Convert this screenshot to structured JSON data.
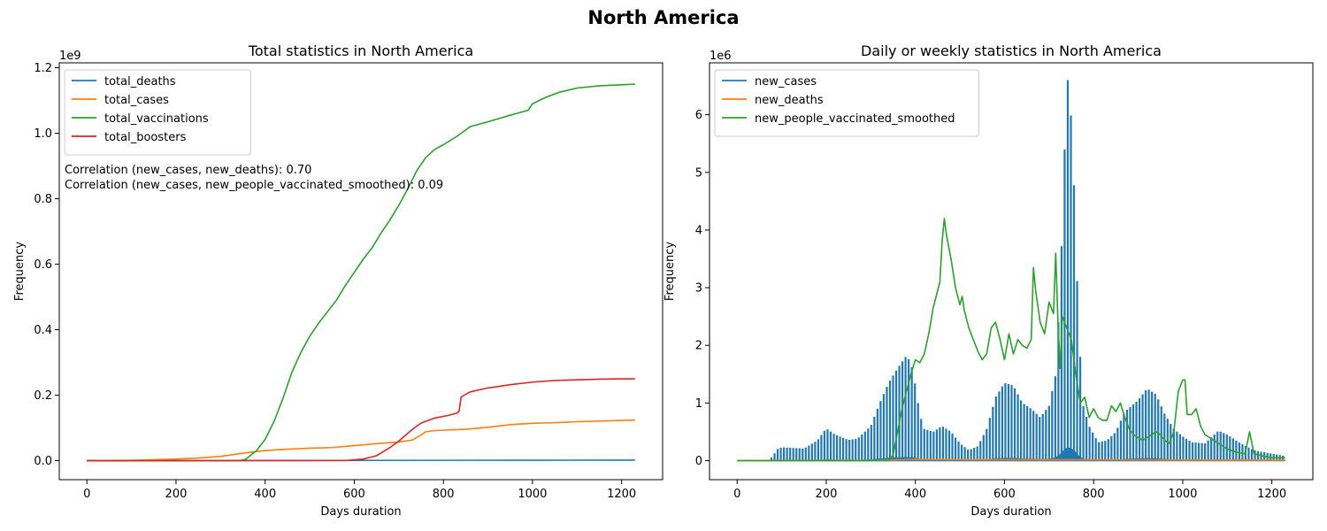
{
  "figure": {
    "title": "North America"
  },
  "colors": {
    "blue": "#1f77b4",
    "orange": "#ff7f0e",
    "green": "#2ca02c",
    "red": "#d62728"
  },
  "chart_data": [
    {
      "type": "line",
      "title": "Total statistics in North America",
      "xlabel": "Days duration",
      "ylabel": "Frequency",
      "offset_text": "1e9",
      "xlim": [
        -62,
        1292
      ],
      "ylim": [
        -0.058,
        1.215
      ],
      "xticks": [
        0,
        200,
        400,
        600,
        800,
        1000,
        1200
      ],
      "yticks": [
        0.0,
        0.2,
        0.4,
        0.6,
        0.8,
        1.0,
        1.2
      ],
      "ytick_labels": [
        "0.0",
        "0.2",
        "0.4",
        "0.6",
        "0.8",
        "1.0",
        "1.2"
      ],
      "legend_position": "upper left",
      "annotations": [
        "Correlation (new_cases, new_deaths): 0.70",
        "Correlation (new_cases, new_people_vaccinated_smoothed): 0.09"
      ],
      "series": [
        {
          "name": "total_deaths",
          "color": "#1f77b4",
          "points": [
            [
              0,
              0
            ],
            [
              300,
              0.0003
            ],
            [
              600,
              0.0008
            ],
            [
              800,
              0.0011
            ],
            [
              1000,
              0.0014
            ],
            [
              1230,
              0.0016
            ]
          ]
        },
        {
          "name": "total_cases",
          "color": "#ff7f0e",
          "points": [
            [
              0,
              0
            ],
            [
              100,
              0.001
            ],
            [
              200,
              0.005
            ],
            [
              250,
              0.008
            ],
            [
              300,
              0.013
            ],
            [
              350,
              0.023
            ],
            [
              400,
              0.031
            ],
            [
              450,
              0.035
            ],
            [
              500,
              0.038
            ],
            [
              550,
              0.04
            ],
            [
              600,
              0.046
            ],
            [
              650,
              0.052
            ],
            [
              700,
              0.057
            ],
            [
              730,
              0.063
            ],
            [
              750,
              0.078
            ],
            [
              760,
              0.088
            ],
            [
              780,
              0.092
            ],
            [
              800,
              0.093
            ],
            [
              850,
              0.096
            ],
            [
              900,
              0.102
            ],
            [
              950,
              0.11
            ],
            [
              1000,
              0.114
            ],
            [
              1050,
              0.116
            ],
            [
              1100,
              0.119
            ],
            [
              1150,
              0.121
            ],
            [
              1200,
              0.123
            ],
            [
              1230,
              0.124
            ]
          ]
        },
        {
          "name": "total_vaccinations",
          "color": "#2ca02c",
          "points": [
            [
              0,
              0
            ],
            [
              340,
              0
            ],
            [
              355,
              0.003
            ],
            [
              380,
              0.03
            ],
            [
              400,
              0.065
            ],
            [
              420,
              0.12
            ],
            [
              440,
              0.19
            ],
            [
              460,
              0.27
            ],
            [
              480,
              0.33
            ],
            [
              500,
              0.38
            ],
            [
              520,
              0.42
            ],
            [
              540,
              0.455
            ],
            [
              560,
              0.49
            ],
            [
              580,
              0.535
            ],
            [
              600,
              0.575
            ],
            [
              620,
              0.615
            ],
            [
              640,
              0.65
            ],
            [
              660,
              0.695
            ],
            [
              680,
              0.735
            ],
            [
              700,
              0.78
            ],
            [
              720,
              0.83
            ],
            [
              740,
              0.885
            ],
            [
              760,
              0.925
            ],
            [
              780,
              0.95
            ],
            [
              800,
              0.965
            ],
            [
              830,
              0.99
            ],
            [
              860,
              1.02
            ],
            [
              900,
              1.035
            ],
            [
              950,
              1.055
            ],
            [
              990,
              1.07
            ],
            [
              1000,
              1.09
            ],
            [
              1030,
              1.11
            ],
            [
              1060,
              1.125
            ],
            [
              1100,
              1.138
            ],
            [
              1150,
              1.145
            ],
            [
              1200,
              1.148
            ],
            [
              1230,
              1.15
            ]
          ]
        },
        {
          "name": "total_boosters",
          "color": "#d62728",
          "points": [
            [
              0,
              0
            ],
            [
              580,
              0.0005
            ],
            [
              620,
              0.005
            ],
            [
              650,
              0.015
            ],
            [
              680,
              0.04
            ],
            [
              700,
              0.06
            ],
            [
              730,
              0.095
            ],
            [
              750,
              0.115
            ],
            [
              780,
              0.13
            ],
            [
              810,
              0.138
            ],
            [
              830,
              0.145
            ],
            [
              835,
              0.15
            ],
            [
              840,
              0.195
            ],
            [
              860,
              0.21
            ],
            [
              900,
              0.222
            ],
            [
              950,
              0.232
            ],
            [
              1000,
              0.24
            ],
            [
              1050,
              0.245
            ],
            [
              1100,
              0.247
            ],
            [
              1150,
              0.249
            ],
            [
              1200,
              0.25
            ],
            [
              1230,
              0.25
            ]
          ]
        }
      ]
    },
    {
      "type": "line",
      "title": "Daily or weekly statistics in North America",
      "xlabel": "Days duration",
      "ylabel": "Frequency",
      "offset_text": "1e6",
      "xlim": [
        -62,
        1292
      ],
      "ylim": [
        -0.33,
        6.9
      ],
      "xticks": [
        0,
        200,
        400,
        600,
        800,
        1000,
        1200
      ],
      "yticks": [
        0,
        1,
        2,
        3,
        4,
        5,
        6
      ],
      "ytick_labels": [
        "0",
        "1",
        "2",
        "3",
        "4",
        "5",
        "6"
      ],
      "legend_position": "upper left",
      "series": [
        {
          "name": "new_cases",
          "color": "#1f77b4",
          "style": "weekly-spikes",
          "points": [
            [
              0,
              0
            ],
            [
              70,
              0
            ],
            [
              80,
              0.08
            ],
            [
              90,
              0.2
            ],
            [
              100,
              0.23
            ],
            [
              150,
              0.21
            ],
            [
              180,
              0.35
            ],
            [
              200,
              0.56
            ],
            [
              220,
              0.45
            ],
            [
              250,
              0.36
            ],
            [
              270,
              0.38
            ],
            [
              300,
              0.6
            ],
            [
              320,
              1.0
            ],
            [
              340,
              1.35
            ],
            [
              360,
              1.6
            ],
            [
              380,
              1.82
            ],
            [
              390,
              1.7
            ],
            [
              400,
              1.3
            ],
            [
              410,
              0.8
            ],
            [
              420,
              0.55
            ],
            [
              440,
              0.5
            ],
            [
              460,
              0.6
            ],
            [
              480,
              0.5
            ],
            [
              500,
              0.3
            ],
            [
              520,
              0.18
            ],
            [
              540,
              0.25
            ],
            [
              560,
              0.55
            ],
            [
              580,
              1.1
            ],
            [
              600,
              1.35
            ],
            [
              620,
              1.3
            ],
            [
              640,
              1.0
            ],
            [
              660,
              0.9
            ],
            [
              680,
              0.75
            ],
            [
              700,
              0.95
            ],
            [
              715,
              1.5
            ],
            [
              725,
              3.0
            ],
            [
              735,
              5.4
            ],
            [
              742,
              6.6
            ],
            [
              750,
              5.9
            ],
            [
              758,
              4.4
            ],
            [
              765,
              2.6
            ],
            [
              775,
              1.0
            ],
            [
              790,
              0.6
            ],
            [
              810,
              0.32
            ],
            [
              830,
              0.35
            ],
            [
              850,
              0.5
            ],
            [
              870,
              0.85
            ],
            [
              900,
              1.05
            ],
            [
              920,
              1.25
            ],
            [
              940,
              1.15
            ],
            [
              960,
              0.8
            ],
            [
              980,
              0.55
            ],
            [
              1000,
              0.42
            ],
            [
              1020,
              0.32
            ],
            [
              1050,
              0.3
            ],
            [
              1080,
              0.52
            ],
            [
              1100,
              0.45
            ],
            [
              1130,
              0.3
            ],
            [
              1160,
              0.18
            ],
            [
              1200,
              0.12
            ],
            [
              1230,
              0.08
            ]
          ]
        },
        {
          "name": "new_deaths",
          "color": "#ff7f0e",
          "points": [
            [
              0,
              0
            ],
            [
              300,
              0.002
            ],
            [
              400,
              0.02
            ],
            [
              600,
              0.015
            ],
            [
              800,
              0.015
            ],
            [
              1000,
              0.01
            ],
            [
              1230,
              0.008
            ]
          ]
        },
        {
          "name": "new_people_vaccinated_smoothed",
          "color": "#2ca02c",
          "points": [
            [
              0,
              0
            ],
            [
              340,
              0
            ],
            [
              350,
              0.1
            ],
            [
              360,
              0.5
            ],
            [
              370,
              0.9
            ],
            [
              380,
              1.2
            ],
            [
              390,
              1.5
            ],
            [
              400,
              1.75
            ],
            [
              410,
              1.7
            ],
            [
              420,
              1.85
            ],
            [
              430,
              2.2
            ],
            [
              440,
              2.65
            ],
            [
              450,
              2.95
            ],
            [
              455,
              3.1
            ],
            [
              460,
              3.8
            ],
            [
              465,
              4.2
            ],
            [
              470,
              3.9
            ],
            [
              480,
              3.5
            ],
            [
              490,
              3.0
            ],
            [
              500,
              2.7
            ],
            [
              505,
              2.85
            ],
            [
              510,
              2.6
            ],
            [
              520,
              2.3
            ],
            [
              530,
              2.1
            ],
            [
              540,
              1.9
            ],
            [
              550,
              1.75
            ],
            [
              560,
              1.85
            ],
            [
              570,
              2.3
            ],
            [
              580,
              2.4
            ],
            [
              590,
              2.1
            ],
            [
              600,
              1.75
            ],
            [
              610,
              2.2
            ],
            [
              620,
              1.85
            ],
            [
              630,
              2.1
            ],
            [
              640,
              2.0
            ],
            [
              650,
              1.95
            ],
            [
              660,
              2.1
            ],
            [
              665,
              3.35
            ],
            [
              670,
              2.95
            ],
            [
              680,
              2.4
            ],
            [
              690,
              2.2
            ],
            [
              700,
              2.75
            ],
            [
              710,
              2.55
            ],
            [
              715,
              3.6
            ],
            [
              720,
              2.4
            ],
            [
              725,
              1.6
            ],
            [
              730,
              2.5
            ],
            [
              740,
              2.3
            ],
            [
              750,
              2.1
            ],
            [
              760,
              1.5
            ],
            [
              770,
              1.0
            ],
            [
              780,
              1.1
            ],
            [
              790,
              0.75
            ],
            [
              800,
              0.9
            ],
            [
              810,
              0.75
            ],
            [
              820,
              0.7
            ],
            [
              830,
              0.7
            ],
            [
              840,
              0.95
            ],
            [
              850,
              0.85
            ],
            [
              860,
              1.0
            ],
            [
              870,
              0.75
            ],
            [
              880,
              0.55
            ],
            [
              890,
              0.45
            ],
            [
              900,
              0.4
            ],
            [
              910,
              0.35
            ],
            [
              920,
              0.4
            ],
            [
              930,
              0.45
            ],
            [
              940,
              0.5
            ],
            [
              950,
              0.45
            ],
            [
              960,
              0.35
            ],
            [
              970,
              0.3
            ],
            [
              980,
              0.5
            ],
            [
              990,
              1.2
            ],
            [
              1000,
              1.4
            ],
            [
              1005,
              1.4
            ],
            [
              1010,
              0.8
            ],
            [
              1020,
              0.8
            ],
            [
              1030,
              0.9
            ],
            [
              1040,
              0.6
            ],
            [
              1050,
              0.45
            ],
            [
              1060,
              0.4
            ],
            [
              1070,
              0.35
            ],
            [
              1080,
              0.3
            ],
            [
              1100,
              0.2
            ],
            [
              1120,
              0.15
            ],
            [
              1140,
              0.12
            ],
            [
              1150,
              0.5
            ],
            [
              1160,
              0.12
            ],
            [
              1180,
              0.08
            ],
            [
              1200,
              0.05
            ],
            [
              1230,
              0.05
            ]
          ]
        }
      ]
    }
  ]
}
